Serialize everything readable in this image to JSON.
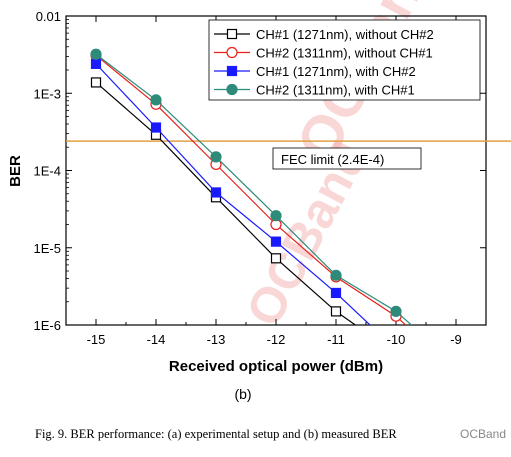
{
  "chart_data": {
    "type": "line",
    "xlabel": "Received optical power (dBm)",
    "ylabel": "BER",
    "xlim": [
      -15.5,
      -8.5
    ],
    "ylim": [
      1e-06,
      0.01
    ],
    "yscale": "log",
    "xticks": [
      -15,
      -14,
      -13,
      -12,
      -11,
      -10,
      -9
    ],
    "yticks": [
      {
        "value": 0.01,
        "label": "0.01"
      },
      {
        "value": 0.001,
        "label": "1E-3"
      },
      {
        "value": 0.0001,
        "label": "1E-4"
      },
      {
        "value": 1e-05,
        "label": "1E-5"
      },
      {
        "value": 1e-06,
        "label": "1E-6"
      }
    ],
    "legend_position": "top-right",
    "grid": false,
    "series": [
      {
        "name": "CH#1 (1271nm), without CH#2",
        "color": "#000000",
        "marker": "square-open",
        "x": [
          -15,
          -14,
          -13,
          -12,
          -11,
          -10.5
        ],
        "y": [
          0.00138,
          0.00029,
          4.5e-05,
          7.3e-06,
          1.5e-06,
          8e-07
        ]
      },
      {
        "name": "CH#2 (1311nm), without CH#1",
        "color": "#e8211b",
        "marker": "circle-open",
        "x": [
          -15,
          -14,
          -13,
          -12,
          -11,
          -10,
          -9.7
        ],
        "y": [
          0.0031,
          0.00072,
          0.00012,
          2e-05,
          4.2e-06,
          1.3e-06,
          8e-07
        ]
      },
      {
        "name": "CH#1 (1271nm), with CH#2",
        "color": "#1a1aff",
        "marker": "square-filled",
        "x": [
          -15,
          -14,
          -13,
          -12,
          -11,
          -10.3
        ],
        "y": [
          0.0024,
          0.00036,
          5.2e-05,
          1.2e-05,
          2.6e-06,
          8e-07
        ]
      },
      {
        "name": "CH#2 (1311nm), with CH#1",
        "color": "#2e8b7a",
        "marker": "circle-filled",
        "x": [
          -15,
          -14,
          -13,
          -12,
          -11,
          -10,
          -9.6
        ],
        "y": [
          0.0032,
          0.00082,
          0.00015,
          2.6e-05,
          4.4e-06,
          1.5e-06,
          8e-07
        ]
      }
    ],
    "fec_limit": {
      "value": 0.00024,
      "label": "FEC limit (2.4E-4)",
      "color": "#e0a040"
    },
    "sub_label": "(b)"
  },
  "caption": "Fig. 9. BER performance: (a) experimental setup and (b) measured BER",
  "watermark": {
    "text": "OCBand",
    "color": "#f4a7a7"
  },
  "brand": "OCBand"
}
